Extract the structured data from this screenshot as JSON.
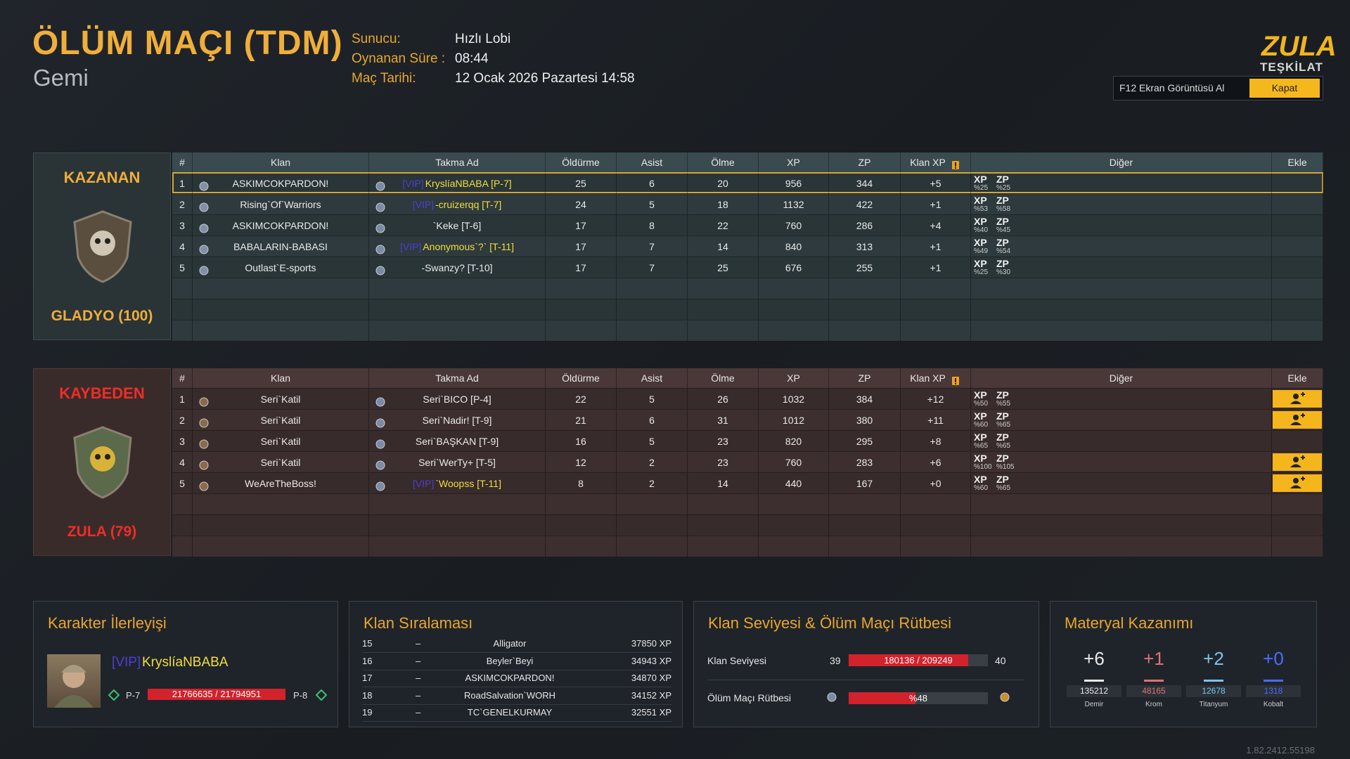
{
  "header": {
    "title": "ÖLÜM MAÇI (TDM)",
    "map": "Gemi",
    "info": [
      {
        "label": "Sunucu:",
        "value": "Hızlı Lobi"
      },
      {
        "label": "Oynanan Süre :",
        "value": "08:44"
      },
      {
        "label": "Maç Tarihi:",
        "value": "12 Ocak 2026 Pazartesi 14:58"
      }
    ]
  },
  "logo": {
    "line1": "ZULA",
    "line2": "TEŞKİLAT"
  },
  "buttons": {
    "screenshot": "F12 Ekran Görüntüsü Al",
    "close": "Kapat"
  },
  "table": {
    "columns": [
      "#",
      "Klan",
      "Takma Ad",
      "Öldürme",
      "Asist",
      "Ölme",
      "XP",
      "ZP",
      "Klan XP",
      "Diğer",
      "Ekle"
    ]
  },
  "teams": [
    {
      "result": "KAZANAN",
      "name": "GLADYO (100)",
      "players": [
        {
          "rank": 1,
          "clan": "ASKIMCOKPARDON!",
          "vip": "[VIP]",
          "nick": "KryslíaNBABA [P-7]",
          "kills": 25,
          "assists": 6,
          "deaths": 20,
          "xp": 956,
          "zp": 344,
          "clan_xp": "+5",
          "bonuses": [
            {
              "label": "XP",
              "value": "%25"
            },
            {
              "label": "ZP",
              "value": "%25"
            }
          ],
          "addable": false
        },
        {
          "rank": 2,
          "clan": "Rising`Of`Warriors",
          "vip": "[VIP]",
          "nick": "-cruizerqq [T-7]",
          "kills": 24,
          "assists": 5,
          "deaths": 18,
          "xp": 1132,
          "zp": 422,
          "clan_xp": "+1",
          "bonuses": [
            {
              "label": "XP",
              "value": "%53"
            },
            {
              "label": "ZP",
              "value": "%58"
            }
          ],
          "addable": false
        },
        {
          "rank": 3,
          "clan": "ASKIMCOKPARDON!",
          "nick": "`Keke [T-6]",
          "kills": 17,
          "assists": 8,
          "deaths": 22,
          "xp": 760,
          "zp": 286,
          "clan_xp": "+4",
          "bonuses": [
            {
              "label": "XP",
              "value": "%40"
            },
            {
              "label": "ZP",
              "value": "%45"
            }
          ],
          "addable": false
        },
        {
          "rank": 4,
          "clan": "BABALARIN-BABASI",
          "vip": "[VIP]",
          "nick": "Anonymous`?` [T-11]",
          "kills": 17,
          "assists": 7,
          "deaths": 14,
          "xp": 840,
          "zp": 313,
          "clan_xp": "+1",
          "bonuses": [
            {
              "label": "XP",
              "value": "%49"
            },
            {
              "label": "ZP",
              "value": "%54"
            }
          ],
          "addable": false
        },
        {
          "rank": 5,
          "clan": "Outlast`E-sports",
          "nick": "-Swanzy? [T-10]",
          "kills": 17,
          "assists": 7,
          "deaths": 25,
          "xp": 676,
          "zp": 255,
          "clan_xp": "+1",
          "bonuses": [
            {
              "label": "XP",
              "value": "%25"
            },
            {
              "label": "ZP",
              "value": "%30"
            }
          ],
          "addable": false
        }
      ]
    },
    {
      "result": "KAYBEDEN",
      "name": "ZULA (79)",
      "players": [
        {
          "rank": 1,
          "clan": "Seri`Katil",
          "nick": "Seri`BICO [P-4]",
          "kills": 22,
          "assists": 5,
          "deaths": 26,
          "xp": 1032,
          "zp": 384,
          "clan_xp": "+12",
          "bonuses": [
            {
              "label": "XP",
              "value": "%50"
            },
            {
              "label": "ZP",
              "value": "%55"
            }
          ],
          "addable": true
        },
        {
          "rank": 2,
          "clan": "Seri`Katil",
          "nick": "Seri`Nadir! [T-9]",
          "kills": 21,
          "assists": 6,
          "deaths": 31,
          "xp": 1012,
          "zp": 380,
          "clan_xp": "+11",
          "bonuses": [
            {
              "label": "XP",
              "value": "%60"
            },
            {
              "label": "ZP",
              "value": "%65"
            }
          ],
          "addable": true
        },
        {
          "rank": 3,
          "clan": "Seri`Katil",
          "nick": "Seri`BAŞKAN [T-9]",
          "kills": 16,
          "assists": 5,
          "deaths": 23,
          "xp": 820,
          "zp": 295,
          "clan_xp": "+8",
          "bonuses": [
            {
              "label": "XP",
              "value": "%65"
            },
            {
              "label": "ZP",
              "value": "%65"
            }
          ],
          "addable": false
        },
        {
          "rank": 4,
          "clan": "Seri`Katil",
          "nick": "Seri`WerTy+ [T-5]",
          "kills": 12,
          "assists": 2,
          "deaths": 23,
          "xp": 760,
          "zp": 283,
          "clan_xp": "+6",
          "bonuses": [
            {
              "label": "XP",
              "value": "%100"
            },
            {
              "label": "ZP",
              "value": "%105"
            }
          ],
          "addable": true
        },
        {
          "rank": 5,
          "clan": "WeAreTheBoss!",
          "vip": "[VIP]",
          "nick": "`Woopss [T-11]",
          "kills": 8,
          "assists": 2,
          "deaths": 14,
          "xp": 440,
          "zp": 167,
          "clan_xp": "+0",
          "bonuses": [
            {
              "label": "XP",
              "value": "%60"
            },
            {
              "label": "ZP",
              "value": "%65"
            }
          ],
          "addable": true
        }
      ]
    }
  ],
  "character": {
    "title": "Karakter İlerleyişi",
    "vip": "[VIP]",
    "name": "KryslíaNBABA",
    "level": "P-7",
    "next_level": "P-8",
    "progress": {
      "value": 21766635,
      "max": 21794951,
      "label": "21766635 / 21794951"
    }
  },
  "clan_ranking": {
    "title": "Klan Sıralaması",
    "rows": [
      {
        "rank": 15,
        "change": "–",
        "name": "Alligator",
        "xp": "37850 XP"
      },
      {
        "rank": 16,
        "change": "–",
        "name": "Beyler`Beyi",
        "xp": "34943 XP"
      },
      {
        "rank": 17,
        "change": "–",
        "name": "ASKIMCOKPARDON!",
        "xp": "34870 XP"
      },
      {
        "rank": 18,
        "change": "–",
        "name": "RoadSalvation`WORH",
        "xp": "34152 XP"
      },
      {
        "rank": 19,
        "change": "–",
        "name": "TC`GENELKURMAY",
        "xp": "32551 XP"
      }
    ]
  },
  "clan_level": {
    "title": "Klan Seviyesi & Ölüm Maçı Rütbesi",
    "level_label": "Klan Seviyesi",
    "level": 39,
    "next_level": 40,
    "progress": {
      "value": 180136,
      "max": 209249,
      "label": "180136 / 209249"
    },
    "rank_label": "Ölüm Maçı Rütbesi",
    "rank_progress": {
      "value": 48,
      "max": 100,
      "label": "%48"
    }
  },
  "materials": {
    "title": "Materyal Kazanımı",
    "items": [
      {
        "gain": "+6",
        "total": 135212,
        "name": "Demir",
        "color": "#e8e8e8"
      },
      {
        "gain": "+1",
        "total": 48165,
        "name": "Krom",
        "color": "#e07272"
      },
      {
        "gain": "+2",
        "total": 12678,
        "name": "Titanyum",
        "color": "#7cc4ec"
      },
      {
        "gain": "+0",
        "total": 1318,
        "name": "Kobalt",
        "color": "#4a6cff"
      }
    ]
  },
  "version": "1.82.2412.55198"
}
